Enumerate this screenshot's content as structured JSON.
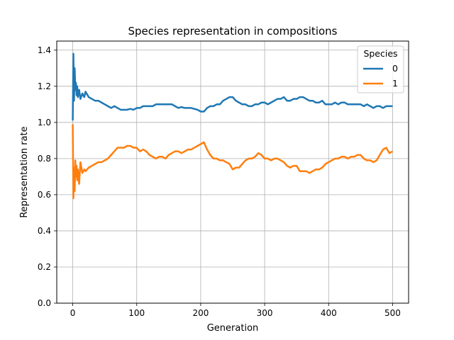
{
  "chart_data": {
    "type": "line",
    "title": "Species representation in compositions",
    "xlabel": "Generation",
    "ylabel": "Representation rate",
    "xlim": [
      -25,
      525
    ],
    "ylim": [
      0,
      1.45
    ],
    "xticks": [
      0,
      100,
      200,
      300,
      400,
      500
    ],
    "xtick_labels": [
      "0",
      "100",
      "200",
      "300",
      "400",
      "500"
    ],
    "yticks": [
      0.0,
      0.2,
      0.4,
      0.6,
      0.8,
      1.0,
      1.2,
      1.4
    ],
    "ytick_labels": [
      "0.0",
      "0.2",
      "0.4",
      "0.6",
      "0.8",
      "1.0",
      "1.2",
      "1.4"
    ],
    "grid": true,
    "legend": {
      "title": "Species",
      "placement": "top-right"
    },
    "series": [
      {
        "name": "0",
        "color": "#1f77b4",
        "x": [
          0,
          1,
          2,
          3,
          4,
          5,
          6,
          7,
          8,
          10,
          12,
          15,
          18,
          20,
          25,
          30,
          35,
          40,
          45,
          50,
          55,
          60,
          65,
          70,
          75,
          80,
          85,
          90,
          95,
          100,
          105,
          110,
          115,
          120,
          125,
          130,
          135,
          140,
          145,
          150,
          155,
          160,
          165,
          170,
          175,
          180,
          185,
          190,
          195,
          200,
          205,
          210,
          215,
          220,
          225,
          230,
          235,
          240,
          245,
          250,
          255,
          260,
          265,
          270,
          275,
          280,
          285,
          290,
          295,
          300,
          305,
          310,
          315,
          320,
          325,
          330,
          335,
          340,
          345,
          350,
          355,
          360,
          365,
          370,
          375,
          380,
          385,
          390,
          395,
          400,
          405,
          410,
          415,
          420,
          425,
          430,
          435,
          440,
          445,
          450,
          455,
          460,
          465,
          470,
          475,
          480,
          485,
          490,
          495,
          500
        ],
        "y": [
          1.01,
          1.38,
          1.12,
          1.3,
          1.18,
          1.22,
          1.15,
          1.2,
          1.14,
          1.18,
          1.13,
          1.16,
          1.14,
          1.17,
          1.14,
          1.13,
          1.12,
          1.12,
          1.11,
          1.1,
          1.09,
          1.08,
          1.09,
          1.08,
          1.07,
          1.07,
          1.07,
          1.075,
          1.07,
          1.08,
          1.08,
          1.09,
          1.09,
          1.09,
          1.09,
          1.1,
          1.1,
          1.1,
          1.1,
          1.1,
          1.1,
          1.09,
          1.08,
          1.085,
          1.08,
          1.08,
          1.08,
          1.075,
          1.07,
          1.06,
          1.06,
          1.08,
          1.09,
          1.09,
          1.1,
          1.1,
          1.12,
          1.13,
          1.14,
          1.14,
          1.12,
          1.11,
          1.1,
          1.1,
          1.09,
          1.09,
          1.1,
          1.1,
          1.11,
          1.11,
          1.1,
          1.11,
          1.12,
          1.13,
          1.13,
          1.14,
          1.12,
          1.12,
          1.13,
          1.13,
          1.14,
          1.14,
          1.13,
          1.12,
          1.12,
          1.11,
          1.11,
          1.12,
          1.1,
          1.1,
          1.1,
          1.11,
          1.1,
          1.11,
          1.11,
          1.1,
          1.1,
          1.1,
          1.1,
          1.1,
          1.09,
          1.1,
          1.09,
          1.08,
          1.09,
          1.09,
          1.08,
          1.09,
          1.09,
          1.09
        ]
      },
      {
        "name": "1",
        "color": "#ff7f0e",
        "x": [
          0,
          1,
          2,
          3,
          4,
          5,
          6,
          7,
          8,
          10,
          12,
          15,
          18,
          20,
          25,
          30,
          35,
          40,
          45,
          50,
          55,
          60,
          65,
          70,
          75,
          80,
          85,
          90,
          95,
          100,
          105,
          110,
          115,
          120,
          125,
          130,
          135,
          140,
          145,
          150,
          155,
          160,
          165,
          170,
          175,
          180,
          185,
          190,
          195,
          200,
          205,
          210,
          215,
          220,
          225,
          230,
          235,
          240,
          245,
          250,
          255,
          260,
          265,
          270,
          275,
          280,
          285,
          290,
          295,
          300,
          305,
          310,
          315,
          320,
          325,
          330,
          335,
          340,
          345,
          350,
          355,
          360,
          365,
          370,
          375,
          380,
          385,
          390,
          395,
          400,
          405,
          410,
          415,
          420,
          425,
          430,
          435,
          440,
          445,
          450,
          455,
          460,
          465,
          470,
          475,
          480,
          485,
          490,
          495,
          500
        ],
        "y": [
          0.99,
          0.58,
          0.75,
          0.62,
          0.79,
          0.7,
          0.76,
          0.68,
          0.74,
          0.66,
          0.78,
          0.72,
          0.74,
          0.73,
          0.75,
          0.76,
          0.77,
          0.78,
          0.78,
          0.79,
          0.8,
          0.82,
          0.84,
          0.86,
          0.86,
          0.86,
          0.87,
          0.87,
          0.86,
          0.86,
          0.84,
          0.85,
          0.84,
          0.82,
          0.81,
          0.8,
          0.81,
          0.81,
          0.8,
          0.82,
          0.83,
          0.84,
          0.84,
          0.83,
          0.84,
          0.85,
          0.85,
          0.86,
          0.87,
          0.88,
          0.89,
          0.85,
          0.82,
          0.8,
          0.8,
          0.79,
          0.79,
          0.78,
          0.77,
          0.74,
          0.75,
          0.75,
          0.77,
          0.79,
          0.8,
          0.8,
          0.81,
          0.83,
          0.82,
          0.8,
          0.8,
          0.79,
          0.8,
          0.8,
          0.79,
          0.78,
          0.76,
          0.75,
          0.76,
          0.76,
          0.73,
          0.73,
          0.73,
          0.72,
          0.73,
          0.74,
          0.74,
          0.75,
          0.77,
          0.78,
          0.79,
          0.8,
          0.8,
          0.81,
          0.81,
          0.8,
          0.81,
          0.81,
          0.82,
          0.82,
          0.8,
          0.79,
          0.79,
          0.78,
          0.79,
          0.82,
          0.85,
          0.86,
          0.83,
          0.84
        ]
      }
    ]
  }
}
